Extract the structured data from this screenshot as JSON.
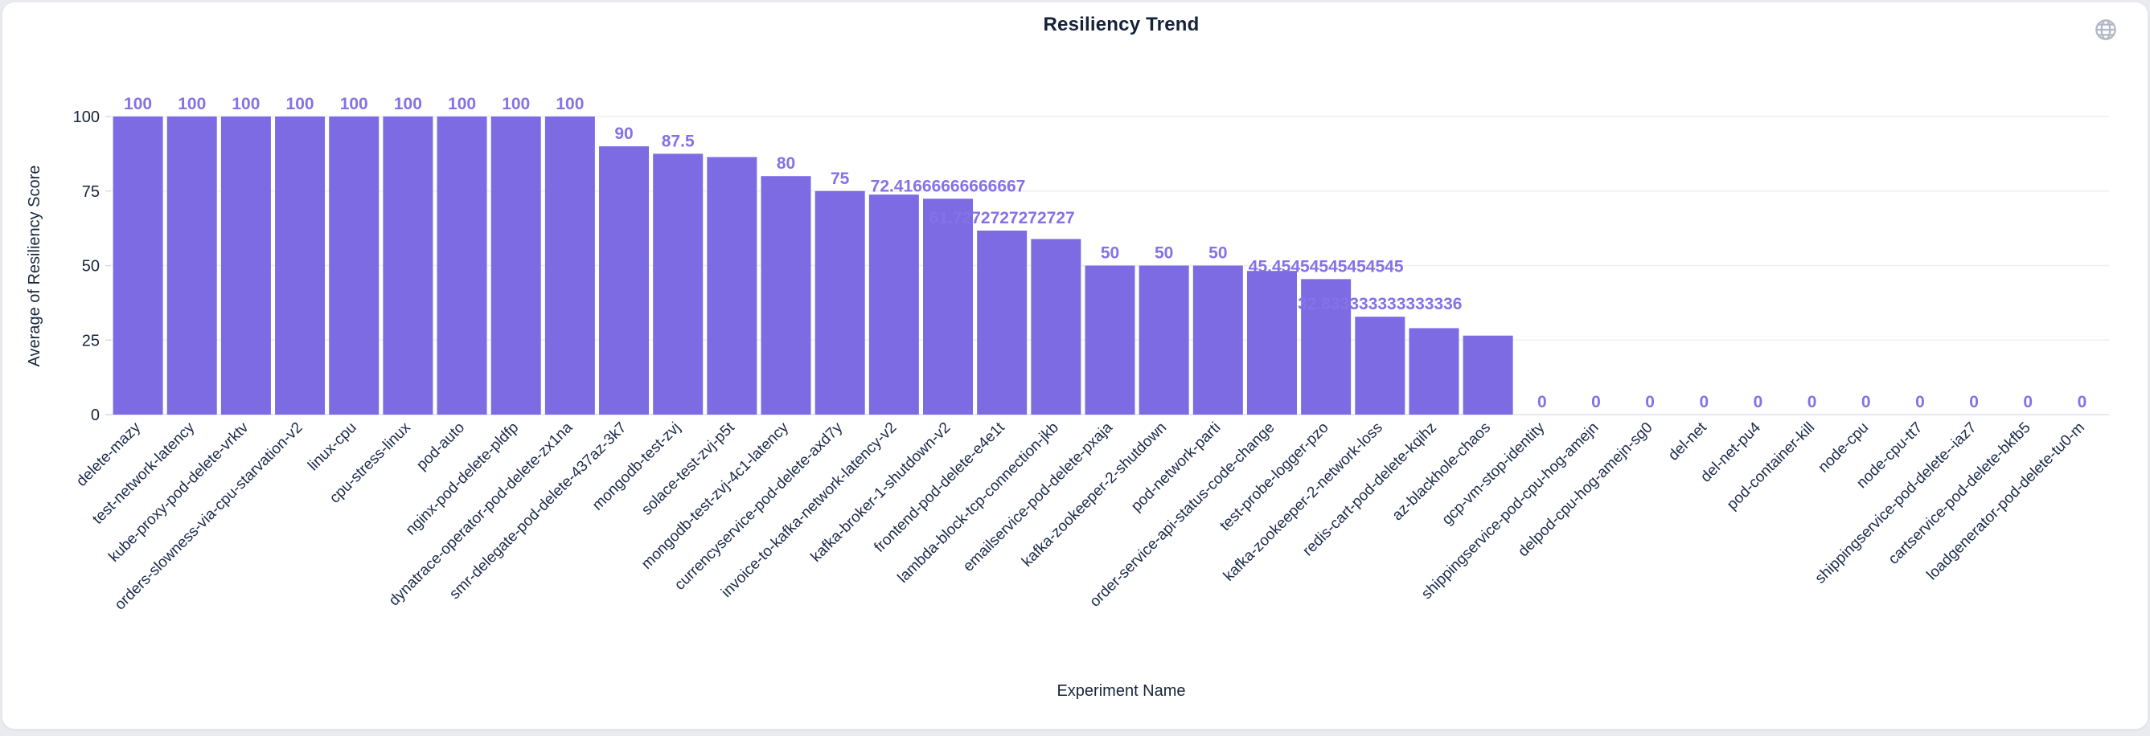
{
  "page": {
    "background": "#e9ebee",
    "card_background": "#ffffff"
  },
  "header": {
    "title": "Resiliency Trend"
  },
  "icons": {
    "globe": "globe-icon"
  },
  "chart_data": {
    "type": "bar",
    "title": "Resiliency Trend",
    "xlabel": "Experiment Name",
    "ylabel": "Average of Resiliency Score",
    "ylim": [
      0,
      100
    ],
    "yticks": [
      0,
      25,
      50,
      75,
      100
    ],
    "grid": true,
    "legend": false,
    "x_label_rotation_deg": 45,
    "colors": {
      "bar": "#7c6be2",
      "value_label": "#8472e7",
      "axis_text": "#1b2b4a",
      "title_text": "#152238",
      "grid_line": "#edeff3",
      "axis_line": "#dde2ea",
      "tick_mark": "#d4d9e2",
      "globe_icon": "#b2b9c4"
    },
    "categories": [
      "delete-mazy",
      "test-network-latency",
      "kube-proxy-pod-delete-vrktv",
      "orders-slowness-via-cpu-starvation-v2",
      "linux-cpu",
      "cpu-stress-linux",
      "pod-auto",
      "nginx-pod-delete-pldfp",
      "dynatrace-operator-pod-delete-zx1na",
      "smr-delegate-pod-delete-437az-3k7",
      "mongodb-test-zvj",
      "solace-test-zvj-p5t",
      "mongodb-test-zvj-4c1-latency",
      "currencyservice-pod-delete-axd7y",
      "invoice-to-kafka-network-latency-v2",
      "kafka-broker-1-shutdown-v2",
      "frontend-pod-delete-e4e1t",
      "lambda-block-tcp-connection-jkb",
      "emailservice-pod-delete-pxaja",
      "kafka-zookeeper-2-shutdown",
      "pod-network-parti",
      "order-service-api-status-code-change",
      "test-probe-logger-pzo",
      "kafka-zookeeper-2-network-loss",
      "redis-cart-pod-delete-kqihz",
      "az-blackhole-chaos",
      "gcp-vm-stop-identity",
      "shippingservice-pod-cpu-hog-amejn",
      "delpod-cpu-hog-amejn-sg0",
      "del-net",
      "del-net-pu4",
      "pod-container-kill",
      "node-cpu",
      "node-cpu-tt7",
      "shippingservice-pod-delete--iaz7",
      "cartservice-pod-delete-bkfb5",
      "loadgenerator-pod-delete-tu0-m"
    ],
    "values": [
      100,
      100,
      100,
      100,
      100,
      100,
      100,
      100,
      100,
      90,
      87.5,
      86.4,
      80,
      75,
      73.8,
      72.41666666666667,
      61.7272727272727,
      58.9,
      50,
      50,
      50,
      48.2,
      45.45454545454545,
      32.833333333333336,
      29,
      26.5,
      0,
      0,
      0,
      0,
      0,
      0,
      0,
      0,
      0,
      0,
      0
    ],
    "value_labels": [
      "100",
      "100",
      "100",
      "100",
      "100",
      "100",
      "100",
      "100",
      "100",
      "90",
      "87.5",
      "",
      "80",
      "75",
      "",
      "72.41666666666667",
      "61.7272727272727",
      "",
      "50",
      "50",
      "50",
      "",
      "45.45454545454545",
      "32.833333333333336",
      "",
      "",
      "0",
      "0",
      "0",
      "0",
      "0",
      "0",
      "0",
      "0",
      "0",
      "0",
      "0"
    ]
  }
}
